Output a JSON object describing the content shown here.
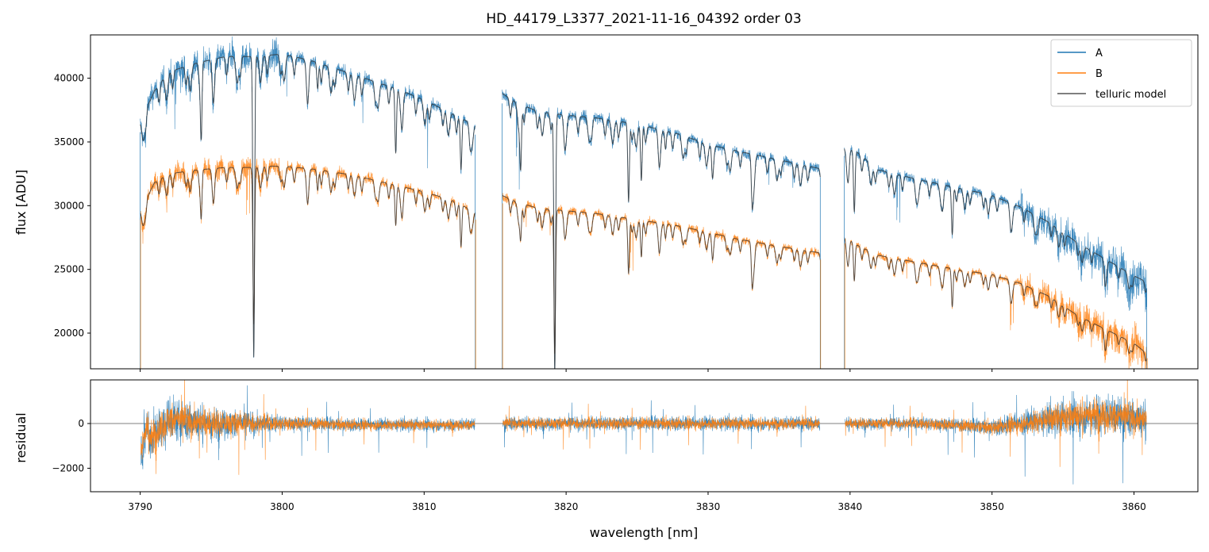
{
  "chart_data": [
    {
      "type": "line",
      "panel": "top",
      "title": "HD_44179_L3377_2021-11-16_04392  order 03",
      "xlabel": "",
      "ylabel": "flux [ADU]",
      "xlim": [
        3786.5,
        3864.5
      ],
      "ylim": [
        17200,
        43400
      ],
      "x_ticks": [
        3790,
        3800,
        3810,
        3820,
        3830,
        3840,
        3850,
        3860
      ],
      "y_ticks": [
        20000,
        25000,
        30000,
        35000,
        40000
      ],
      "y_tick_labels": [
        "20000",
        "25000",
        "30000",
        "35000",
        "40000"
      ],
      "segments": [
        [
          3790.0,
          3813.6
        ],
        [
          3815.5,
          3837.9
        ],
        [
          3839.6,
          3860.9
        ]
      ],
      "absorption_lines": [
        {
          "x": 3798.0,
          "depth_A": 0.55,
          "depth_B": 0.35
        },
        {
          "x": 3819.2,
          "depth_A": 0.55,
          "depth_B": 0.38
        },
        {
          "x": 3816.8,
          "depth_A": 0.12,
          "depth_B": 0.08
        },
        {
          "x": 3824.4,
          "depth_A": 0.17,
          "depth_B": 0.15
        },
        {
          "x": 3825.3,
          "depth_A": 0.12,
          "depth_B": 0.1
        },
        {
          "x": 3794.3,
          "depth_A": 0.14,
          "depth_B": 0.11
        },
        {
          "x": 3808.0,
          "depth_A": 0.13,
          "depth_B": 0.1
        },
        {
          "x": 3812.6,
          "depth_A": 0.11,
          "depth_B": 0.11
        },
        {
          "x": 3833.1,
          "depth_A": 0.09,
          "depth_B": 0.1
        },
        {
          "x": 3840.3,
          "depth_A": 0.14,
          "depth_B": 0.11
        },
        {
          "x": 3847.2,
          "depth_A": 0.12,
          "depth_B": 0.12
        },
        {
          "x": 3827.0,
          "depth_A": 0.04,
          "depth_B": 0.04
        },
        {
          "x": 3802.5,
          "depth_A": 0.05,
          "depth_B": 0.05
        },
        {
          "x": 3830.3,
          "depth_A": 0.05,
          "depth_B": 0.05
        }
      ],
      "series": [
        {
          "name": "A",
          "color": "#1f77b4",
          "x": [
            3790.0,
            3791.0,
            3792.0,
            3794.0,
            3796.0,
            3798.0,
            3799.0,
            3800.0,
            3802.0,
            3805.0,
            3808.0,
            3810.0,
            3812.0,
            3813.6,
            3815.5,
            3816.5,
            3818.0,
            3820.0,
            3822.0,
            3825.0,
            3828.0,
            3830.0,
            3832.0,
            3835.0,
            3837.9,
            3839.6,
            3840.5,
            3842.0,
            3845.0,
            3848.0,
            3850.0,
            3852.0,
            3854.0,
            3856.0,
            3858.0,
            3860.0,
            3860.9
          ],
          "y": [
            36500,
            39000,
            40500,
            41200,
            41700,
            41700,
            41800,
            41900,
            41400,
            40300,
            39200,
            38300,
            37200,
            36300,
            38800,
            38100,
            37400,
            37100,
            36900,
            36400,
            35600,
            34800,
            34300,
            33600,
            32900,
            34600,
            34200,
            32800,
            32000,
            31300,
            30800,
            29900,
            28700,
            27100,
            25800,
            24500,
            24000
          ]
        },
        {
          "name": "B",
          "color": "#ff7f0e",
          "x": [
            3790.0,
            3791.0,
            3792.0,
            3794.0,
            3796.0,
            3798.0,
            3799.0,
            3800.0,
            3802.0,
            3805.0,
            3808.0,
            3810.0,
            3812.0,
            3813.6,
            3815.5,
            3816.5,
            3818.0,
            3820.0,
            3822.0,
            3825.0,
            3828.0,
            3830.0,
            3832.0,
            3835.0,
            3837.9,
            3839.6,
            3840.5,
            3842.0,
            3845.0,
            3848.0,
            3850.0,
            3852.0,
            3854.0,
            3856.0,
            3858.0,
            3860.0,
            3860.9
          ],
          "y": [
            29500,
            31800,
            32500,
            32800,
            33000,
            33000,
            33100,
            33100,
            32900,
            32400,
            31600,
            31100,
            30400,
            29500,
            30800,
            30300,
            29800,
            29600,
            29400,
            28900,
            28400,
            27900,
            27400,
            26800,
            26300,
            27600,
            26900,
            26100,
            25500,
            24900,
            24600,
            23900,
            22900,
            21400,
            20300,
            19200,
            18400
          ]
        },
        {
          "name": "telluric model",
          "color": "#333333",
          "style": "thin smooth model overlaid on A and B"
        }
      ],
      "legend": {
        "position": "top-right",
        "entries": [
          "A",
          "B",
          "telluric model"
        ]
      }
    },
    {
      "type": "line",
      "panel": "bottom",
      "xlabel": "wavelength [nm]",
      "ylabel": "residual",
      "xlim": [
        3786.5,
        3864.5
      ],
      "ylim": [
        -3050,
        1950
      ],
      "x_ticks": [
        3790,
        3800,
        3810,
        3820,
        3830,
        3840,
        3850,
        3860
      ],
      "x_tick_labels": [
        "3790",
        "3800",
        "3810",
        "3820",
        "3830",
        "3840",
        "3850",
        "3860"
      ],
      "y_ticks": [
        -2000,
        0
      ],
      "y_tick_labels": [
        "−2000",
        "0"
      ],
      "reference_line": 0,
      "noise_profile": {
        "x": [
          3790.0,
          3792.0,
          3795.0,
          3798.0,
          3800.0,
          3805.0,
          3813.6,
          3815.5,
          3825.0,
          3837.9,
          3839.6,
          3845.0,
          3850.0,
          3854.0,
          3857.0,
          3860.9
        ],
        "amplitude": [
          1600,
          1500,
          1250,
          850,
          550,
          450,
          450,
          500,
          500,
          500,
          450,
          450,
          550,
          1100,
          1500,
          1300
        ],
        "offset": [
          -2000,
          300,
          0,
          0,
          0,
          -100,
          -100,
          0,
          0,
          0,
          0,
          0,
          -300,
          300,
          700,
          300
        ]
      },
      "series": [
        {
          "name": "A",
          "color": "#1f77b4"
        },
        {
          "name": "B",
          "color": "#ff7f0e"
        }
      ]
    }
  ]
}
